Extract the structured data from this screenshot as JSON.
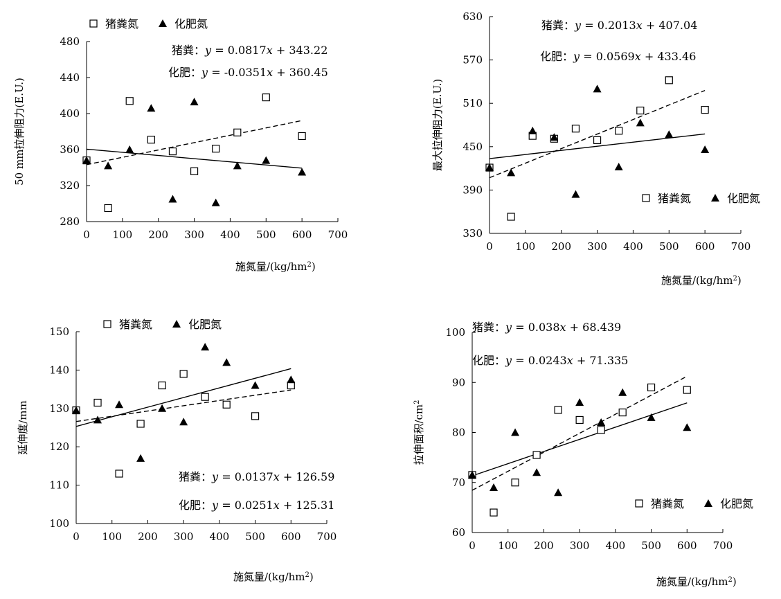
{
  "chart_data": [
    {
      "type": "scatter",
      "id": "tl",
      "xlabel": "施氮量/(kg/hm",
      "xlabel_sup": "2",
      "xlabel_tail": ")",
      "ylabel": "50 mm拉伸阻力(E.U.)",
      "xlim": [
        0,
        700
      ],
      "ylim": [
        280,
        480
      ],
      "xticks": [
        0,
        100,
        200,
        300,
        400,
        500,
        600,
        700
      ],
      "yticks": [
        280,
        320,
        360,
        400,
        440,
        480
      ],
      "xtick_labels": [
        "0",
        "100",
        "200",
        "300",
        "400",
        "500",
        "600",
        "700"
      ],
      "ytick_labels": [
        "280",
        "320",
        "360",
        "400",
        "440",
        "480"
      ],
      "legend": [
        {
          "symbol": "□",
          "label": "猪粪氮"
        },
        {
          "symbol": "▲",
          "label": "化肥氮"
        }
      ],
      "legend_position": "top-left",
      "series": [
        {
          "name": "猪粪氮",
          "marker": "square",
          "x": [
            0,
            60,
            120,
            180,
            240,
            300,
            360,
            420,
            500,
            600
          ],
          "y": [
            348,
            295,
            414,
            371,
            358,
            336,
            361,
            379,
            418,
            375
          ]
        },
        {
          "name": "化肥氮",
          "marker": "triangle",
          "x": [
            0,
            60,
            120,
            180,
            240,
            300,
            360,
            420,
            500,
            600
          ],
          "y": [
            348,
            342,
            360,
            406,
            305,
            413,
            301,
            342,
            348,
            335
          ]
        }
      ],
      "fits": [
        {
          "series": "猪粪氮",
          "style": "dashed",
          "slope": 0.0817,
          "intercept": 343.22,
          "label": "猪粪：y = 0.0817x + 343.22"
        },
        {
          "series": "化肥氮",
          "style": "solid",
          "slope": -0.0351,
          "intercept": 360.45,
          "label": "化肥：y = -0.0351x + 360.45"
        }
      ]
    },
    {
      "type": "scatter",
      "id": "tr",
      "xlabel": "施氮量/(kg/hm",
      "xlabel_sup": "2",
      "xlabel_tail": ")",
      "ylabel": "最大拉伸阻力(E.U.)",
      "xlim": [
        0,
        700
      ],
      "ylim": [
        330,
        630
      ],
      "xticks": [
        0,
        100,
        200,
        300,
        400,
        500,
        600,
        700
      ],
      "yticks": [
        330,
        390,
        450,
        510,
        570,
        630
      ],
      "xtick_labels": [
        "0",
        "100",
        "200",
        "300",
        "400",
        "500",
        "600",
        "700"
      ],
      "ytick_labels": [
        "330",
        "390",
        "450",
        "510",
        "570",
        "630"
      ],
      "legend": [
        {
          "symbol": "□",
          "label": "猪粪氮"
        },
        {
          "symbol": "▲",
          "label": "化肥氮"
        }
      ],
      "legend_position": "lower-right",
      "series": [
        {
          "name": "猪粪氮",
          "marker": "square",
          "x": [
            0,
            60,
            120,
            180,
            240,
            300,
            360,
            420,
            500,
            600
          ],
          "y": [
            421,
            353,
            465,
            461,
            475,
            459,
            472,
            500,
            542,
            501
          ]
        },
        {
          "name": "化肥氮",
          "marker": "triangle",
          "x": [
            0,
            60,
            120,
            180,
            240,
            300,
            360,
            420,
            500,
            600
          ],
          "y": [
            421,
            414,
            472,
            463,
            384,
            530,
            422,
            483,
            467,
            446
          ]
        }
      ],
      "fits": [
        {
          "series": "猪粪氮",
          "style": "dashed",
          "slope": 0.2013,
          "intercept": 407.04,
          "label": "猪粪：y = 0.2013x + 407.04"
        },
        {
          "series": "化肥氮",
          "style": "solid",
          "slope": 0.0569,
          "intercept": 433.46,
          "label": "化肥：y = 0.0569x + 433.46"
        }
      ]
    },
    {
      "type": "scatter",
      "id": "bl",
      "xlabel": "施氮量/(kg/hm",
      "xlabel_sup": "2",
      "xlabel_tail": ")",
      "ylabel": "延伸度/mm",
      "xlim": [
        0,
        700
      ],
      "ylim": [
        100,
        150
      ],
      "xticks": [
        0,
        100,
        200,
        300,
        400,
        500,
        600,
        700
      ],
      "yticks": [
        100,
        110,
        120,
        130,
        140,
        150
      ],
      "xtick_labels": [
        "0",
        "100",
        "200",
        "300",
        "400",
        "500",
        "600",
        "700"
      ],
      "ytick_labels": [
        "100",
        "110",
        "120",
        "130",
        "140",
        "150"
      ],
      "legend": [
        {
          "symbol": "□",
          "label": "猪粪氮"
        },
        {
          "symbol": "▲",
          "label": "化肥氮"
        }
      ],
      "legend_position": "top-left",
      "series": [
        {
          "name": "猪粪氮",
          "marker": "square",
          "x": [
            0,
            60,
            120,
            180,
            240,
            300,
            360,
            420,
            500,
            600
          ],
          "y": [
            129.5,
            131.5,
            113,
            126,
            136,
            139,
            133,
            131,
            128,
            136
          ]
        },
        {
          "name": "化肥氮",
          "marker": "triangle",
          "x": [
            0,
            60,
            120,
            180,
            240,
            300,
            360,
            420,
            500,
            600
          ],
          "y": [
            129.5,
            127,
            131,
            117,
            130,
            126.5,
            146,
            142,
            136,
            137.5
          ]
        }
      ],
      "fits": [
        {
          "series": "猪粪氮",
          "style": "dashed",
          "slope": 0.0137,
          "intercept": 126.59,
          "label": "猪粪：y = 0.0137x + 126.59"
        },
        {
          "series": "化肥氮",
          "style": "solid",
          "slope": 0.0251,
          "intercept": 125.31,
          "label": "化肥：y = 0.0251x + 125.31"
        }
      ]
    },
    {
      "type": "scatter",
      "id": "br",
      "xlabel": "施氮量/(kg/hm",
      "xlabel_sup": "2",
      "xlabel_tail": ")",
      "ylabel": "拉伸面积/cm",
      "ylabel_sup": "2",
      "xlim": [
        0,
        700
      ],
      "ylim": [
        60,
        100
      ],
      "xticks": [
        0,
        100,
        200,
        300,
        400,
        500,
        600,
        700
      ],
      "yticks": [
        60,
        70,
        80,
        90,
        100
      ],
      "xtick_labels": [
        "0",
        "100",
        "200",
        "300",
        "400",
        "500",
        "600",
        "700"
      ],
      "ytick_labels": [
        "60",
        "70",
        "80",
        "90",
        "100"
      ],
      "legend": [
        {
          "symbol": "□",
          "label": "猪粪氮"
        },
        {
          "symbol": "▲",
          "label": "化肥氮"
        }
      ],
      "legend_position": "lower-right",
      "series": [
        {
          "name": "猪粪氮",
          "marker": "square",
          "x": [
            0,
            60,
            120,
            180,
            240,
            300,
            360,
            420,
            500,
            600
          ],
          "y": [
            71.5,
            64,
            70,
            75.5,
            84.5,
            82.5,
            80.5,
            84,
            89,
            88.5
          ]
        },
        {
          "name": "化肥氮",
          "marker": "triangle",
          "x": [
            0,
            60,
            120,
            180,
            240,
            300,
            360,
            420,
            500,
            600
          ],
          "y": [
            71.5,
            69,
            80,
            72,
            68,
            86,
            82,
            88,
            83,
            81
          ]
        }
      ],
      "fits": [
        {
          "series": "猪粪氮",
          "style": "dashed",
          "slope": 0.038,
          "intercept": 68.439,
          "label": "猪粪：y = 0.038x + 68.439"
        },
        {
          "series": "化肥氮",
          "style": "solid",
          "slope": 0.0243,
          "intercept": 71.335,
          "label": "化肥：y = 0.0243x + 71.335"
        }
      ]
    }
  ]
}
